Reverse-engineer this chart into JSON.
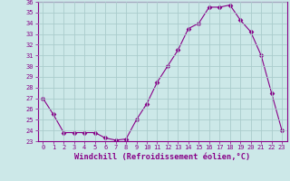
{
  "x": [
    0,
    1,
    2,
    3,
    4,
    5,
    6,
    7,
    8,
    9,
    10,
    11,
    12,
    13,
    14,
    15,
    16,
    17,
    18,
    19,
    20,
    21,
    22,
    23
  ],
  "y": [
    27.0,
    25.5,
    23.8,
    23.8,
    23.8,
    23.8,
    23.3,
    23.1,
    23.2,
    25.0,
    26.5,
    28.5,
    30.0,
    31.5,
    33.5,
    34.0,
    35.5,
    35.5,
    35.7,
    34.3,
    33.2,
    31.0,
    27.5,
    24.0
  ],
  "line_color": "#880088",
  "marker": "D",
  "marker_size": 2.5,
  "bg_color": "#cce8e8",
  "grid_color": "#aacccc",
  "xlabel": "Windchill (Refroidissement éolien,°C)",
  "xlim": [
    -0.5,
    23.5
  ],
  "ylim": [
    23,
    36
  ],
  "yticks": [
    23,
    24,
    25,
    26,
    27,
    28,
    29,
    30,
    31,
    32,
    33,
    34,
    35,
    36
  ],
  "xticks": [
    0,
    1,
    2,
    3,
    4,
    5,
    6,
    7,
    8,
    9,
    10,
    11,
    12,
    13,
    14,
    15,
    16,
    17,
    18,
    19,
    20,
    21,
    22,
    23
  ]
}
